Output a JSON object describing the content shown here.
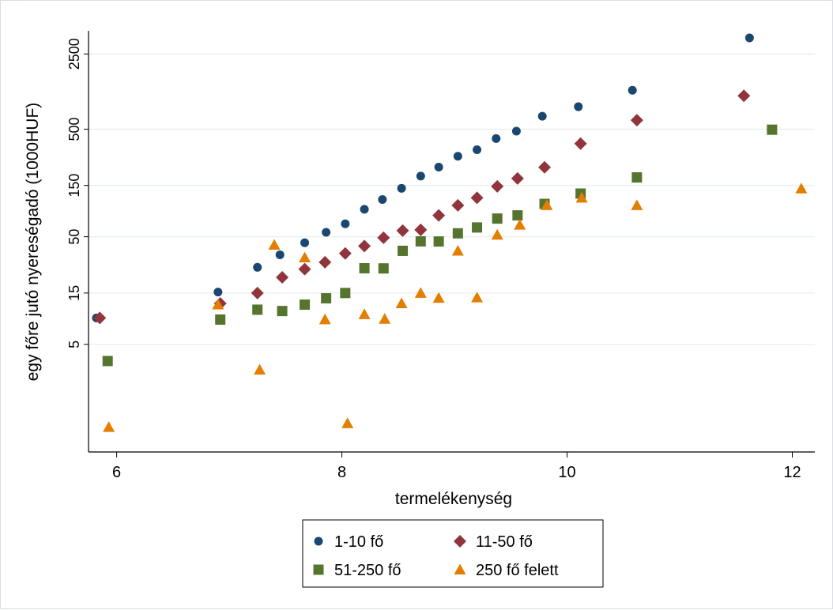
{
  "chart_data": {
    "type": "scatter",
    "title": "",
    "xlabel": "termelékenység",
    "ylabel": "egy főre jutó nyereségadó (1000HUF)",
    "xlim": [
      5.75,
      12.2
    ],
    "ylim": [
      0.5,
      4100
    ],
    "y_scale": "log",
    "x_ticks": [
      6,
      8,
      10,
      12
    ],
    "x_tick_labels": [
      "6",
      "8",
      "10",
      "12"
    ],
    "y_ticks": [
      5,
      15,
      50,
      150,
      500,
      2500
    ],
    "y_tick_labels": [
      "5",
      "15",
      "50",
      "150",
      "500",
      "2500"
    ],
    "grid": "horizontal",
    "legend_position": "bottom",
    "series": [
      {
        "name": "1-10 fő",
        "color": "#1a476f",
        "marker": "circle",
        "points": [
          [
            5.82,
            8.8
          ],
          [
            6.9,
            15.3
          ],
          [
            7.25,
            26
          ],
          [
            7.45,
            34
          ],
          [
            7.67,
            44
          ],
          [
            7.86,
            55
          ],
          [
            8.03,
            66
          ],
          [
            8.2,
            90
          ],
          [
            8.36,
            111
          ],
          [
            8.53,
            141
          ],
          [
            8.7,
            183
          ],
          [
            8.86,
            222
          ],
          [
            9.03,
            280
          ],
          [
            9.2,
            322
          ],
          [
            9.37,
            409
          ],
          [
            9.55,
            479
          ],
          [
            9.78,
            659
          ],
          [
            10.1,
            808
          ],
          [
            10.58,
            1148
          ],
          [
            11.62,
            3519
          ]
        ]
      },
      {
        "name": "11-50 fő",
        "color": "#90353b",
        "marker": "diamond",
        "points": [
          [
            5.85,
            8.8
          ],
          [
            6.92,
            12
          ],
          [
            7.25,
            15
          ],
          [
            7.47,
            21
          ],
          [
            7.67,
            25
          ],
          [
            7.85,
            29
          ],
          [
            8.03,
            35
          ],
          [
            8.2,
            41
          ],
          [
            8.37,
            49
          ],
          [
            8.54,
            57
          ],
          [
            8.7,
            58
          ],
          [
            8.86,
            79
          ],
          [
            9.03,
            98
          ],
          [
            9.2,
            115
          ],
          [
            9.38,
            147
          ],
          [
            9.56,
            174
          ],
          [
            9.8,
            221
          ],
          [
            10.12,
            367
          ],
          [
            10.62,
            605
          ],
          [
            11.57,
            1020
          ]
        ]
      },
      {
        "name": "51-250 fő",
        "color": "#55752f",
        "marker": "square",
        "points": [
          [
            5.92,
            3.5
          ],
          [
            6.92,
            8.5
          ],
          [
            7.25,
            10.5
          ],
          [
            7.47,
            10.2
          ],
          [
            7.67,
            11.7
          ],
          [
            7.86,
            13.4
          ],
          [
            8.03,
            15
          ],
          [
            8.2,
            25.5
          ],
          [
            8.37,
            25.4
          ],
          [
            8.54,
            37
          ],
          [
            8.7,
            45.3
          ],
          [
            8.86,
            45.2
          ],
          [
            9.03,
            53.8
          ],
          [
            9.2,
            61
          ],
          [
            9.38,
            73.8
          ],
          [
            9.56,
            79
          ],
          [
            9.8,
            101
          ],
          [
            10.12,
            126
          ],
          [
            10.62,
            178
          ],
          [
            11.82,
            494
          ]
        ]
      },
      {
        "name": "250 fő felett",
        "color": "#e37e00",
        "marker": "triangle",
        "points": [
          [
            5.93,
            0.85
          ],
          [
            6.9,
            11.7
          ],
          [
            7.27,
            2.9
          ],
          [
            7.4,
            42
          ],
          [
            7.67,
            32
          ],
          [
            7.85,
            8.5
          ],
          [
            8.05,
            0.92
          ],
          [
            8.2,
            9.5
          ],
          [
            8.38,
            8.6
          ],
          [
            8.53,
            12
          ],
          [
            8.7,
            15
          ],
          [
            8.86,
            13.5
          ],
          [
            9.03,
            37
          ],
          [
            9.2,
            13.6
          ],
          [
            9.38,
            52
          ],
          [
            9.58,
            64.5
          ],
          [
            9.82,
            98
          ],
          [
            10.13,
            115
          ],
          [
            10.62,
            98
          ],
          [
            12.08,
            140
          ]
        ]
      }
    ]
  }
}
